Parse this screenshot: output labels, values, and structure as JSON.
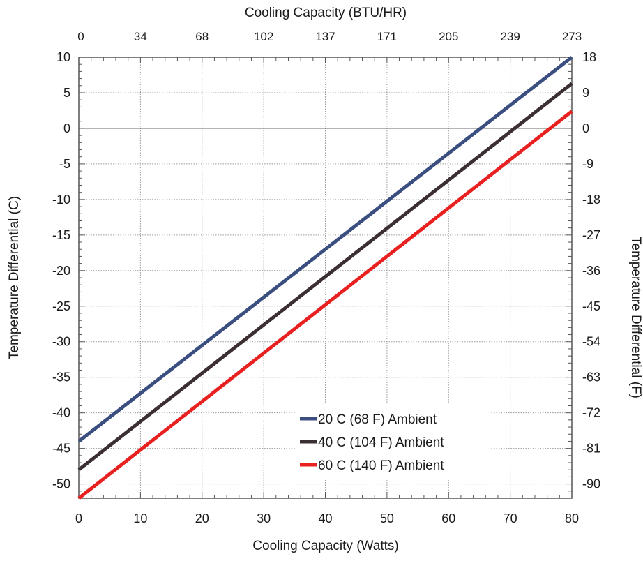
{
  "chart_data": {
    "type": "line",
    "top_axis_title": "Cooling Capacity (BTU/HR)",
    "xlabel": "Cooling Capacity (Watts)",
    "ylabel_left": "Temperature Differential (C)",
    "ylabel_right": "Temperature Differential (F)",
    "xlim": [
      0,
      80
    ],
    "ylim": [
      -52,
      10
    ],
    "x_ticks": [
      "0",
      "10",
      "20",
      "30",
      "40",
      "50",
      "60",
      "70",
      "80"
    ],
    "y_ticks_left": [
      "10",
      "5",
      "0",
      "-5",
      "-10",
      "-15",
      "-20",
      "-25",
      "-30",
      "-35",
      "-40",
      "-45",
      "-50"
    ],
    "y_ticks_right": [
      "18",
      "9",
      "0",
      "-9",
      "-18",
      "-27",
      "-36",
      "-45",
      "-54",
      "-63",
      "-72",
      "-81",
      "-90"
    ],
    "top_ticks": [
      "0",
      "34",
      "68",
      "102",
      "137",
      "171",
      "205",
      "239",
      "273"
    ],
    "grid": true,
    "legend_position": "bottom-right",
    "series": [
      {
        "name": "20 C (68 F) Ambient",
        "color": "#3a4f7f",
        "x": [
          0,
          80
        ],
        "y": [
          -44,
          10
        ]
      },
      {
        "name": "40 C (104 F) Ambient",
        "color": "#3b2f31",
        "x": [
          0,
          80
        ],
        "y": [
          -48,
          6.3
        ]
      },
      {
        "name": "60 C (140 F) Ambient",
        "color": "#e8201f",
        "x": [
          0,
          80
        ],
        "y": [
          -52,
          2.4
        ]
      }
    ]
  }
}
